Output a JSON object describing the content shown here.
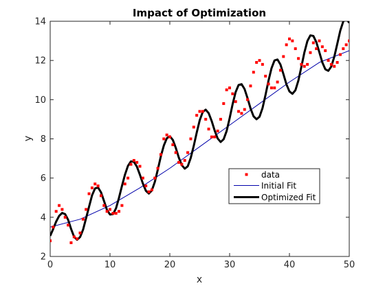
{
  "chart_data": {
    "type": "scatter",
    "title": "Impact of Optimization",
    "xlabel": "x",
    "ylabel": "y",
    "xlim": [
      0,
      50
    ],
    "ylim": [
      2,
      14
    ],
    "xticks": [
      "0",
      "10",
      "20",
      "30",
      "40",
      "50"
    ],
    "yticks": [
      "2",
      "4",
      "6",
      "8",
      "10",
      "12",
      "14"
    ],
    "legend_position": "lower-right",
    "grid": false,
    "series": [
      {
        "name": "data",
        "style": "markers",
        "color": "#ff0000",
        "x": [
          0,
          0.5,
          1,
          1.5,
          2,
          2.5,
          3,
          3.5,
          4,
          4.5,
          5,
          5.5,
          6,
          6.5,
          7,
          7.5,
          8,
          8.5,
          9,
          9.5,
          10,
          10.5,
          11,
          11.5,
          12,
          12.5,
          13,
          13.5,
          14,
          14.5,
          15,
          15.5,
          16,
          16.5,
          17,
          17.5,
          18,
          18.5,
          19,
          19.5,
          20,
          20.5,
          21,
          21.5,
          22,
          22.5,
          23,
          23.5,
          24,
          24.5,
          25,
          25.5,
          26,
          26.5,
          27,
          27.5,
          28,
          28.5,
          29,
          29.5,
          30,
          30.5,
          31,
          31.5,
          32,
          32.5,
          33,
          33.5,
          34,
          34.5,
          35,
          35.5,
          36,
          36.5,
          37,
          37.5,
          38,
          38.5,
          39,
          39.5,
          40,
          40.5,
          41,
          41.5,
          42,
          42.5,
          43,
          43.5,
          44,
          44.5,
          45,
          45.5,
          46,
          46.5,
          47,
          47.5,
          48,
          48.5,
          49,
          49.5,
          50
        ],
        "y": [
          2.8,
          3.5,
          4.3,
          4.6,
          4.4,
          4.0,
          3.6,
          2.7,
          3.0,
          2.9,
          3.2,
          3.9,
          4.4,
          5.2,
          5.5,
          5.7,
          5.6,
          5.1,
          4.6,
          4.3,
          4.4,
          4.2,
          4.2,
          4.3,
          4.6,
          5.7,
          6.0,
          6.7,
          6.9,
          6.8,
          6.6,
          6.0,
          5.6,
          5.3,
          5.4,
          6.0,
          6.5,
          7.2,
          8.0,
          8.2,
          8.1,
          7.7,
          7.3,
          6.8,
          6.7,
          6.9,
          7.3,
          8.0,
          8.6,
          9.2,
          9.4,
          9.4,
          9.0,
          8.5,
          8.1,
          8.1,
          8.4,
          9.0,
          9.8,
          10.5,
          10.6,
          10.3,
          9.9,
          9.4,
          9.3,
          9.5,
          10.0,
          10.7,
          11.4,
          11.9,
          12.0,
          11.8,
          11.2,
          10.8,
          10.6,
          10.6,
          10.9,
          11.5,
          12.2,
          12.8,
          13.1,
          13.0,
          12.6,
          12.1,
          11.8,
          11.7,
          11.8,
          12.4,
          12.9,
          12.6,
          13.0,
          12.7,
          12.5,
          12.0,
          11.8,
          11.7,
          11.9,
          12.3,
          12.6,
          12.8,
          13.0
        ]
      },
      {
        "name": "Initial Fit",
        "style": "thin-line",
        "color": "#0000aa",
        "x": [
          0,
          5,
          10,
          15,
          20,
          25,
          30,
          35,
          40,
          45,
          50
        ],
        "y": [
          3.5,
          3.9,
          4.6,
          5.5,
          6.5,
          7.6,
          8.7,
          9.8,
          10.9,
          11.9,
          12.5
        ]
      },
      {
        "name": "Optimized Fit",
        "style": "thick-line",
        "color": "#000000",
        "x": [
          0,
          0.5,
          1,
          1.5,
          2,
          2.5,
          3,
          3.5,
          4,
          4.5,
          5,
          5.5,
          6,
          6.5,
          7,
          7.5,
          8,
          8.5,
          9,
          9.5,
          10,
          10.5,
          11,
          11.5,
          12,
          12.5,
          13,
          13.5,
          14,
          14.5,
          15,
          15.5,
          16,
          16.5,
          17,
          17.5,
          18,
          18.5,
          19,
          19.5,
          20,
          20.5,
          21,
          21.5,
          22,
          22.5,
          23,
          23.5,
          24,
          24.5,
          25,
          25.5,
          26,
          26.5,
          27,
          27.5,
          28,
          28.5,
          29,
          29.5,
          30,
          30.5,
          31,
          31.5,
          32,
          32.5,
          33,
          33.5,
          34,
          34.5,
          35,
          35.5,
          36,
          36.5,
          37,
          37.5,
          38,
          38.5,
          39,
          39.5,
          40,
          40.5,
          41,
          41.5,
          42,
          42.5,
          43,
          43.5,
          44,
          44.5,
          45,
          45.5,
          46,
          46.5,
          47,
          47.5,
          48,
          48.5,
          49,
          49.5,
          50
        ],
        "y": [
          3.05,
          3.4,
          3.78,
          4.07,
          4.22,
          4.16,
          3.87,
          3.4,
          3.0,
          2.85,
          2.99,
          3.37,
          3.95,
          4.54,
          5.12,
          5.47,
          5.52,
          5.27,
          4.83,
          4.37,
          4.14,
          4.16,
          4.45,
          4.99,
          5.6,
          6.17,
          6.62,
          6.85,
          6.83,
          6.58,
          6.17,
          5.72,
          5.35,
          5.21,
          5.37,
          5.81,
          6.44,
          7.11,
          7.66,
          8.03,
          8.13,
          7.95,
          7.54,
          7.05,
          6.66,
          6.48,
          6.6,
          7.03,
          7.64,
          8.32,
          8.95,
          9.37,
          9.49,
          9.31,
          8.91,
          8.42,
          8.02,
          7.84,
          7.98,
          8.4,
          9.05,
          9.77,
          10.38,
          10.75,
          10.79,
          10.54,
          10.07,
          9.55,
          9.15,
          9.0,
          9.13,
          9.57,
          10.24,
          10.97,
          11.6,
          12.0,
          12.05,
          11.79,
          11.3,
          10.78,
          10.42,
          10.3,
          10.48,
          10.98,
          11.68,
          12.41,
          12.99,
          13.28,
          13.25,
          12.93,
          12.42,
          11.9,
          11.55,
          11.47,
          11.69,
          12.19,
          12.85,
          13.52,
          13.99,
          14.13,
          13.92
        ]
      }
    ]
  }
}
